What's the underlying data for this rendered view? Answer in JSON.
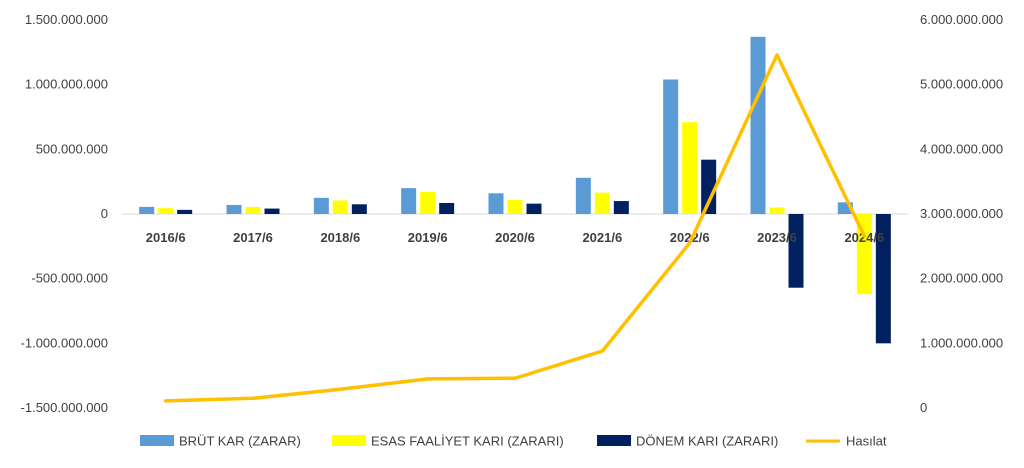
{
  "chart_data": {
    "type": "bar",
    "categories": [
      "2016/6",
      "2017/6",
      "2018/6",
      "2019/6",
      "2020/6",
      "2021/6",
      "2022/6",
      "2023/6",
      "2024/6"
    ],
    "y_left": {
      "min": -1500000000,
      "max": 1500000000,
      "step": 500000000,
      "tick_labels": [
        "-1.500.000.000",
        "-1.000.000.000",
        "-500.000.000",
        "0",
        "500.000.000",
        "1.000.000.000",
        "1.500.000.000"
      ]
    },
    "y_right": {
      "min": 0,
      "max": 6000000000,
      "step": 1000000000,
      "tick_labels": [
        "0",
        "1.000.000.000",
        "2.000.000.000",
        "3.000.000.000",
        "4.000.000.000",
        "5.000.000.000",
        "6.000.000.000"
      ]
    },
    "series": [
      {
        "name": "BRÜT KAR (ZARAR)",
        "type": "bar",
        "axis": "left",
        "color": "#5B9BD5",
        "values": [
          55000000,
          70000000,
          125000000,
          200000000,
          160000000,
          280000000,
          1040000000,
          1370000000,
          90000000
        ]
      },
      {
        "name": "ESAS FAALİYET KARI (ZARARI)",
        "type": "bar",
        "axis": "left",
        "color": "#FFFF00",
        "values": [
          45000000,
          55000000,
          105000000,
          170000000,
          110000000,
          165000000,
          710000000,
          50000000,
          -620000000
        ]
      },
      {
        "name": "DÖNEM KARI (ZARARI)",
        "type": "bar",
        "axis": "left",
        "color": "#002060",
        "values": [
          32000000,
          42000000,
          75000000,
          85000000,
          80000000,
          100000000,
          420000000,
          -570000000,
          -1000000000
        ]
      },
      {
        "name": "Hasılat",
        "type": "line",
        "axis": "right",
        "color": "#FFC000",
        "values": [
          110000000,
          150000000,
          290000000,
          450000000,
          460000000,
          880000000,
          2550000000,
          5460000000,
          2660000000
        ]
      }
    ],
    "legend_position": "bottom",
    "grid": false
  }
}
